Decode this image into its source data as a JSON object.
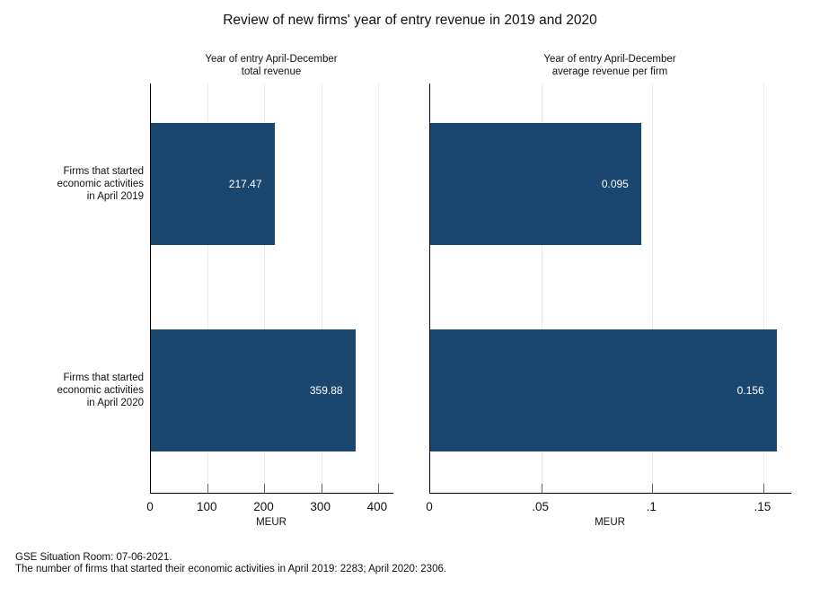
{
  "title": "Review of new firms' year of entry revenue in 2019 and 2020",
  "footer": {
    "line1": "GSE Situation Room: 07-06-2021.",
    "line2": "The number of firms that started their economic activities in April 2019: 2283; April 2020: 2306."
  },
  "colors": {
    "bar": "#1a476f",
    "grid": "#e8ecef",
    "axis": "#000000",
    "bar_label_text": "#ffffff"
  },
  "chart_data": [
    {
      "type": "bar",
      "orientation": "horizontal",
      "title": "Year of entry April-December\ntotal revenue",
      "categories": [
        "Firms that started\neconomic activities\nin April 2019",
        "Firms that started\neconomic activities\nin April 2020"
      ],
      "values": [
        217.47,
        359.88
      ],
      "data_labels": [
        "217.47",
        "359.88"
      ],
      "xlabel": "MEUR",
      "xlim": [
        0,
        427
      ],
      "xticks": [
        0,
        100,
        200,
        300,
        400
      ],
      "xtick_labels": [
        "0",
        "100",
        "200",
        "300",
        "400"
      ],
      "grid": true,
      "legend": "none"
    },
    {
      "type": "bar",
      "orientation": "horizontal",
      "title": "Year of entry April-December\naverage revenue per firm",
      "categories": [
        "Firms that started\neconomic activities\nin April 2019",
        "Firms that started\neconomic activities\nin April 2020"
      ],
      "values": [
        0.095,
        0.156
      ],
      "data_labels": [
        "0.095",
        "0.156"
      ],
      "xlabel": "MEUR",
      "xlim": [
        0,
        0.1626
      ],
      "xticks": [
        0,
        0.05,
        0.1,
        0.15
      ],
      "xtick_labels": [
        "0",
        ".05",
        ".1",
        ".15"
      ],
      "grid": true,
      "legend": "none"
    }
  ]
}
